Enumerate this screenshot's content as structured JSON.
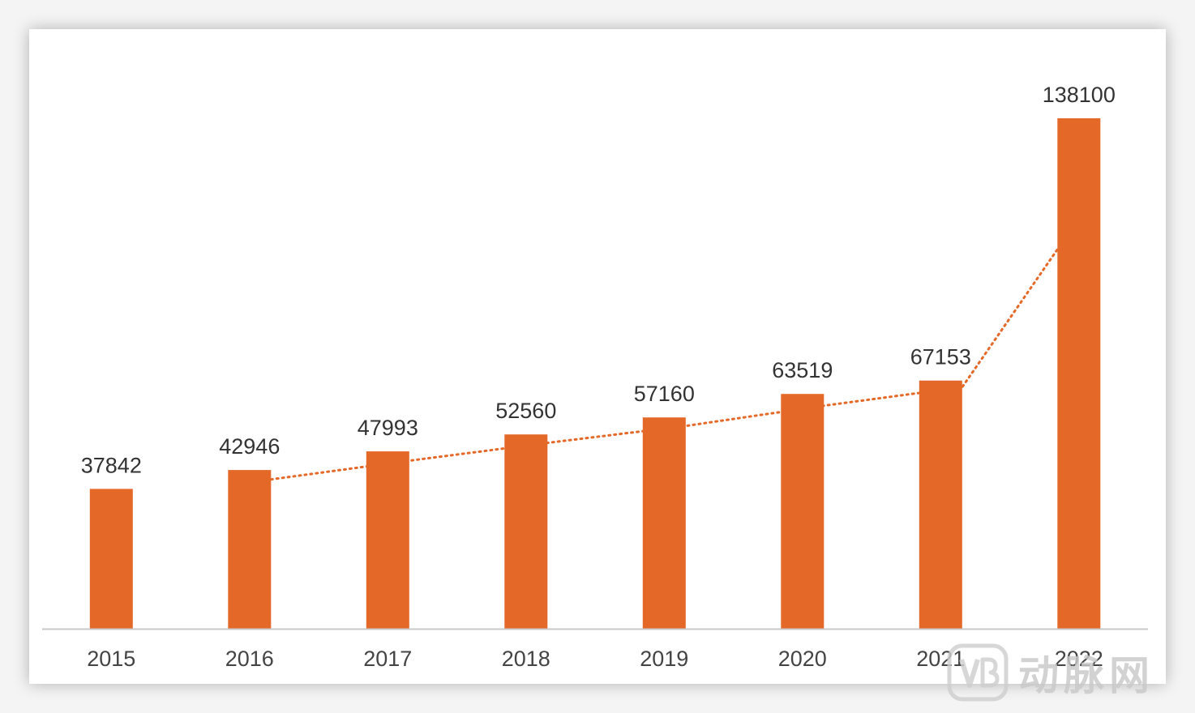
{
  "colors": {
    "bar": "#E46827",
    "trend": "#E46827",
    "axis": "#c8c8c8",
    "label": "#333333"
  },
  "chart_data": {
    "type": "bar",
    "title": "",
    "xlabel": "",
    "ylabel": "",
    "categories": [
      "2015",
      "2016",
      "2017",
      "2018",
      "2019",
      "2020",
      "2021",
      "2022"
    ],
    "values": [
      37842,
      42946,
      47993,
      52560,
      57160,
      63519,
      67153,
      138100
    ],
    "value_labels": [
      "37842",
      "42946",
      "47993",
      "52560",
      "57160",
      "63519",
      "67153",
      "138100"
    ],
    "ylim": [
      0,
      138100
    ],
    "grid": false,
    "legend": "none",
    "trendline": {
      "style": "dotted",
      "type": "moving-average",
      "period": 2
    }
  },
  "watermark": {
    "logo_text": "VB",
    "text": "动脉网"
  }
}
